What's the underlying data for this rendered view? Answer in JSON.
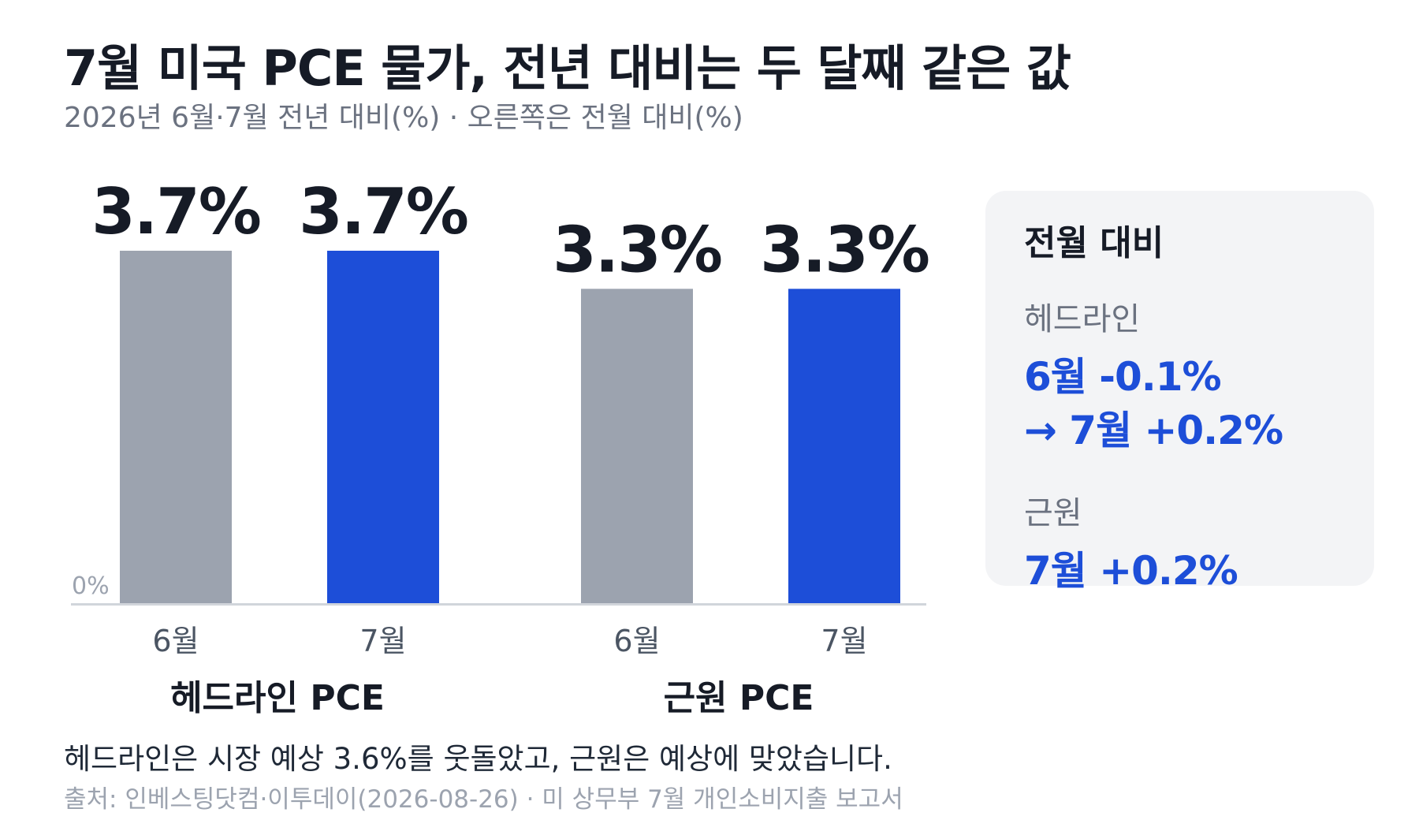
{
  "header": {
    "title": "7월 미국 PCE 물가, 전년 대비는 두 달째 같은 값",
    "subtitle": "2026년 6월·7월 전년 대비(%) · 오른쪽은 전월 대비(%)"
  },
  "chart_data": {
    "type": "bar",
    "groups": [
      "헤드라인 PCE",
      "근원 PCE"
    ],
    "categories": [
      "6월",
      "7월"
    ],
    "series": [
      {
        "group": "헤드라인 PCE",
        "values": [
          3.7,
          3.7
        ],
        "labels": [
          "3.7%",
          "3.7%"
        ]
      },
      {
        "group": "근원 PCE",
        "values": [
          3.3,
          3.3
        ],
        "labels": [
          "3.3%",
          "3.3%"
        ]
      }
    ],
    "ylim": [
      0,
      3.7
    ],
    "zero_label": "0%",
    "colors": {
      "6월": "#9ca3af",
      "7월": "#1d4ed8"
    }
  },
  "panel": {
    "title": "전월 대비",
    "headline_label": "헤드라인",
    "headline_line1": "6월 -0.1%",
    "headline_line2": "→ 7월 +0.2%",
    "core_label": "근원",
    "core_value": "7월 +0.2%"
  },
  "footer": {
    "note": "헤드라인은 시장 예상 3.6%를 웃돌았고, 근원은 예상에 맞았습니다.",
    "source": "출처: 인베스팅닷컴·이투데이(2026-08-26) · 미 상무부 7월 개인소비지출 보고서"
  },
  "colors": {
    "accent": "#1d4ed8",
    "muted_bar": "#9ca3af",
    "title": "#161b26"
  }
}
